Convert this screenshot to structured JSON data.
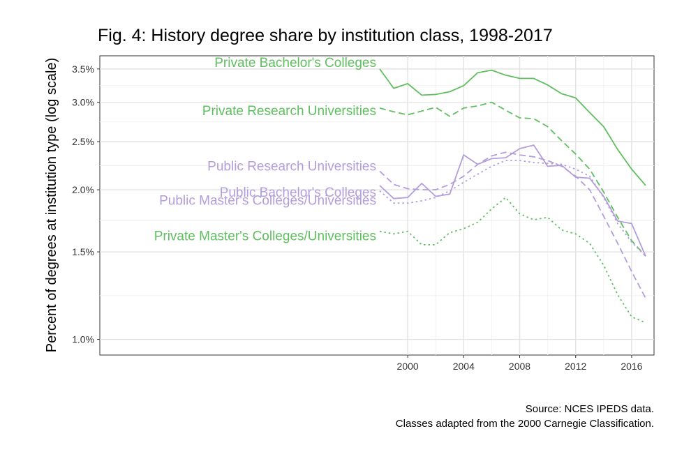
{
  "chart_data": {
    "type": "line",
    "title": "Fig. 4: History degree share by institution class, 1998-2017",
    "xlabel": "",
    "ylabel": "Percent of degrees at institution type (log scale)",
    "yscale": "log",
    "xlim": [
      1978,
      2017.6
    ],
    "ylim": [
      0.93,
      3.72
    ],
    "x_ticks": [
      2000,
      2004,
      2008,
      2012,
      2016
    ],
    "x_tick_labels": [
      "2000",
      "2004",
      "2008",
      "2012",
      "2016"
    ],
    "y_ticks": [
      1.0,
      1.5,
      2.0,
      2.5,
      3.0,
      3.5
    ],
    "y_tick_labels": [
      "1.0%",
      "1.5%",
      "2.0%",
      "2.5%",
      "3.0%",
      "3.5%"
    ],
    "grid": true,
    "legend": "direct labels at left of each series",
    "x": [
      1998,
      1999,
      2000,
      2001,
      2002,
      2003,
      2004,
      2005,
      2006,
      2007,
      2008,
      2009,
      2010,
      2011,
      2012,
      2013,
      2014,
      2015,
      2016,
      2017
    ],
    "series": [
      {
        "name": "Private Bachelor's Colleges",
        "color": "#5fbf5f",
        "dash": "solid",
        "values": [
          3.5,
          3.2,
          3.27,
          3.1,
          3.11,
          3.15,
          3.24,
          3.44,
          3.48,
          3.4,
          3.35,
          3.35,
          3.25,
          3.12,
          3.06,
          2.86,
          2.68,
          2.41,
          2.2,
          2.04
        ]
      },
      {
        "name": "Private Research Universities",
        "color": "#5fbf5f",
        "dash": "dashed",
        "values": [
          2.92,
          2.87,
          2.83,
          2.88,
          2.93,
          2.81,
          2.92,
          2.95,
          3.0,
          2.89,
          2.79,
          2.78,
          2.68,
          2.51,
          2.36,
          2.2,
          1.98,
          1.76,
          1.58,
          1.47
        ]
      },
      {
        "name": "Public Research Universities",
        "color": "#b39ddb",
        "dash": "dashed",
        "values": [
          2.18,
          2.05,
          2.01,
          2.0,
          2.0,
          2.05,
          2.13,
          2.25,
          2.34,
          2.38,
          2.35,
          2.33,
          2.29,
          2.23,
          2.13,
          2.0,
          1.77,
          1.56,
          1.37,
          1.21
        ]
      },
      {
        "name": "Public Bachelor's Colleges",
        "color": "#b39ddb",
        "dash": "solid",
        "values": [
          2.04,
          1.92,
          1.93,
          2.06,
          1.94,
          1.96,
          2.35,
          2.25,
          2.31,
          2.32,
          2.42,
          2.46,
          2.23,
          2.24,
          2.12,
          2.11,
          1.94,
          1.73,
          1.71,
          1.47
        ]
      },
      {
        "name": "Public Master's Colleges/Universities",
        "color": "#b39ddb",
        "dash": "dotted",
        "values": [
          1.99,
          1.88,
          1.88,
          1.9,
          1.93,
          1.99,
          2.07,
          2.15,
          2.23,
          2.29,
          2.29,
          2.27,
          2.26,
          2.25,
          2.2,
          2.13,
          1.93,
          1.71,
          1.57,
          1.47
        ]
      },
      {
        "name": "Private Master's Colleges/Universities",
        "color": "#5fbf5f",
        "dash": "dotted",
        "values": [
          1.65,
          1.63,
          1.65,
          1.55,
          1.55,
          1.64,
          1.67,
          1.72,
          1.83,
          1.93,
          1.79,
          1.74,
          1.76,
          1.66,
          1.63,
          1.56,
          1.41,
          1.23,
          1.11,
          1.08
        ]
      }
    ],
    "caption": [
      "Source: NCES IPEDS data.",
      "Classes adapted from the 2000 Carnegie Classification."
    ]
  }
}
